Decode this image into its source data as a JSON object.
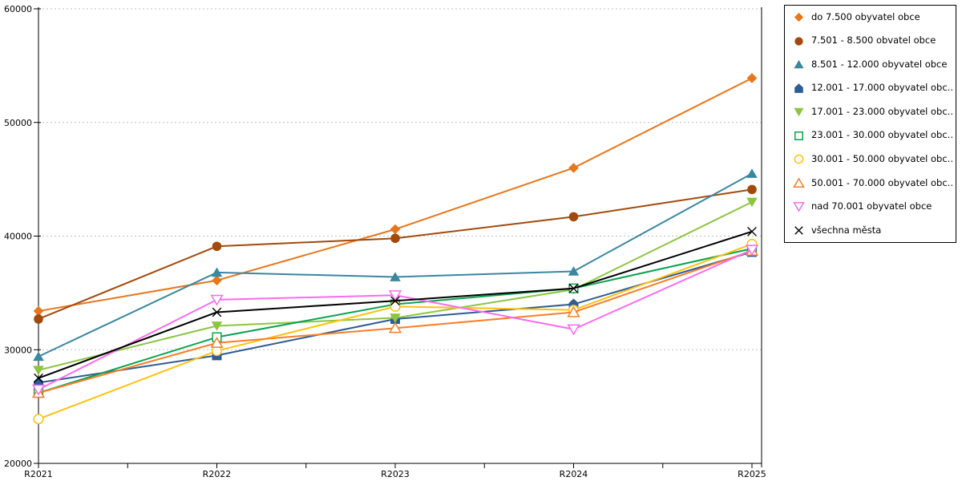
{
  "page": {
    "background": "#ffffff"
  },
  "chart_data": {
    "type": "line",
    "title": "",
    "xlabel": "",
    "ylabel": "",
    "categories": [
      "R2021",
      "R2022",
      "R2023",
      "R2024",
      "R2025"
    ],
    "ylim": [
      20000,
      60000
    ],
    "y_tick_labels": [
      "20000",
      "30000",
      "40000",
      "50000",
      "60000"
    ],
    "grid": "horizontal-dotted",
    "gridline_color": "#c0c0c0",
    "legend_position": "top-right",
    "series": [
      {
        "name": "do 7.500 obyvatel obce",
        "color": "#E8761A",
        "marker": "diamond",
        "open": false,
        "values": [
          33400,
          36100,
          40600,
          46000,
          53900
        ]
      },
      {
        "name": "7.501 - 8.500 obvatel obce",
        "color": "#A24A0C",
        "marker": "circle",
        "open": false,
        "values": [
          32700,
          39100,
          39800,
          41700,
          44100
        ]
      },
      {
        "name": "8.501 - 12.000 obyvatel obce",
        "color": "#3A87A0",
        "marker": "triangle-up",
        "open": false,
        "values": [
          29400,
          36800,
          36400,
          36900,
          45500
        ]
      },
      {
        "name": "12.001 - 17.000 obyvatel obc...",
        "color": "#2F5C94",
        "marker": "pentagon",
        "open": false,
        "values": [
          27100,
          29500,
          32700,
          34000,
          38600
        ]
      },
      {
        "name": "17.001 - 23.000 obyvatel obc...",
        "color": "#8CC63E",
        "marker": "triangle-down",
        "open": false,
        "values": [
          28200,
          32100,
          32800,
          35300,
          43000
        ]
      },
      {
        "name": "23.001 - 30.000 obyvatel obc...",
        "color": "#0AA351",
        "marker": "square",
        "open": true,
        "values": [
          26200,
          31100,
          34000,
          35400,
          38900
        ]
      },
      {
        "name": "30.001 - 50.000 obyvatel obc...",
        "color": "#FFC20E",
        "marker": "circle",
        "open": true,
        "values": [
          23900,
          29900,
          33800,
          33500,
          39300
        ]
      },
      {
        "name": "50.001 - 70.000 obyvatel obc...",
        "color": "#F97E27",
        "marker": "triangle-up",
        "open": true,
        "values": [
          26200,
          30600,
          31900,
          33300,
          38700
        ]
      },
      {
        "name": "nad 70.001 obyvatel obce",
        "color": "#FB6BF0",
        "marker": "triangle-down",
        "open": true,
        "values": [
          26500,
          34400,
          34800,
          31800,
          38800
        ]
      },
      {
        "name": "všechna města",
        "color": "#000000",
        "marker": "x",
        "open": true,
        "values": [
          27500,
          33300,
          34300,
          35400,
          40400
        ]
      }
    ]
  }
}
